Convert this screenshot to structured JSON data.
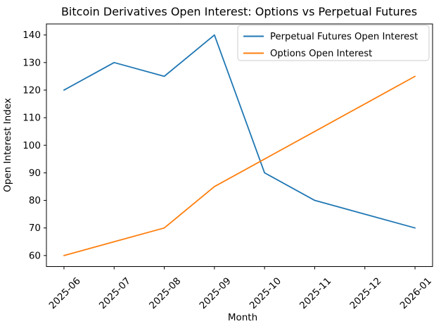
{
  "chart_data": {
    "type": "line",
    "title": "Bitcoin Derivatives Open Interest: Options vs Perpetual Futures",
    "xlabel": "Month",
    "ylabel": "Open Interest Index",
    "categories": [
      "2025-06",
      "2025-07",
      "2025-08",
      "2025-09",
      "2025-10",
      "2025-11",
      "2025-12",
      "2026-01"
    ],
    "series": [
      {
        "name": "Perpetual Futures Open Interest",
        "color": "#1f77b4",
        "values": [
          120,
          130,
          125,
          140,
          90,
          80,
          75,
          70
        ]
      },
      {
        "name": "Options Open Interest",
        "color": "#ff7f0e",
        "values": [
          60,
          65,
          70,
          85,
          95,
          105,
          115,
          125
        ]
      }
    ],
    "yticks": [
      60,
      70,
      80,
      90,
      100,
      110,
      120,
      130,
      140
    ],
    "ylim": [
      56,
      144
    ],
    "grid": false,
    "legend_position": "upper right",
    "axis_color": "#000000",
    "background_color": "#ffffff"
  }
}
